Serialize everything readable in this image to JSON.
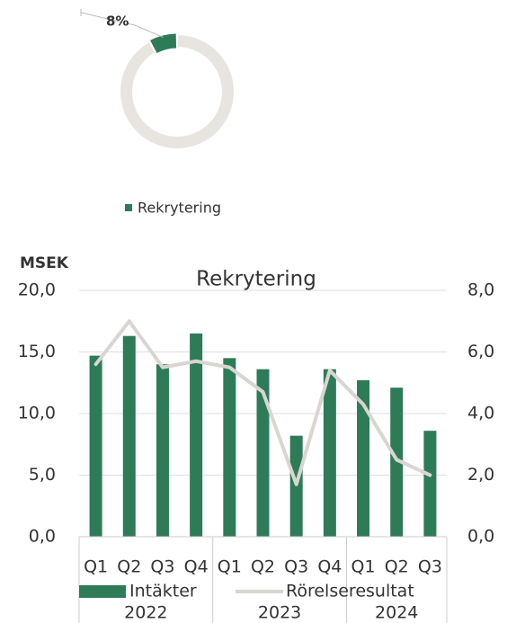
{
  "chart_data": [
    {
      "type": "pie",
      "donut": true,
      "categories": [
        "Rekrytering",
        null
      ],
      "values": [
        8,
        92
      ],
      "value_labels": [
        "8%",
        null
      ],
      "colors": [
        "#2e7b58",
        "#e8e5e1"
      ]
    },
    {
      "type": "bar",
      "title": "Rekrytering",
      "y_label": "MSEK",
      "categories": [
        "Q1",
        "Q2",
        "Q3",
        "Q4",
        "Q1",
        "Q2",
        "Q3",
        "Q4",
        "Q1",
        "Q2",
        "Q3"
      ],
      "groups": [
        {
          "label": "2022",
          "size": 4
        },
        {
          "label": "2023",
          "size": 4
        },
        {
          "label": "2024",
          "size": 3
        }
      ],
      "series": [
        {
          "name": "Intäkter",
          "type": "bar",
          "color": "#2e7b58",
          "values": [
            14.7,
            16.3,
            14.0,
            16.5,
            14.5,
            13.6,
            8.2,
            13.6,
            12.7,
            12.1,
            8.6
          ]
        },
        {
          "name": "Rörelseresultat",
          "type": "line",
          "axis": "y2",
          "color": "#d9d5d0",
          "values": [
            5.6,
            7.0,
            5.5,
            5.7,
            5.5,
            4.7,
            1.7,
            5.4,
            4.3,
            2.5,
            2.0
          ]
        }
      ],
      "ylim": [
        0,
        20
      ],
      "yticks": [
        {
          "value": 0,
          "label": "0,0"
        },
        {
          "value": 5,
          "label": "5,0"
        },
        {
          "value": 10,
          "label": "10,0"
        },
        {
          "value": 15,
          "label": "15,0"
        },
        {
          "value": 20,
          "label": "20,0"
        }
      ],
      "y2lim": [
        0,
        8
      ],
      "y2ticks": [
        {
          "value": 0,
          "label": "0,0"
        },
        {
          "value": 2,
          "label": "2,0"
        },
        {
          "value": 4,
          "label": "4,0"
        },
        {
          "value": 6,
          "label": "6,0"
        },
        {
          "value": 8,
          "label": "8,0"
        }
      ],
      "grid": true,
      "legend": "bottom"
    }
  ]
}
